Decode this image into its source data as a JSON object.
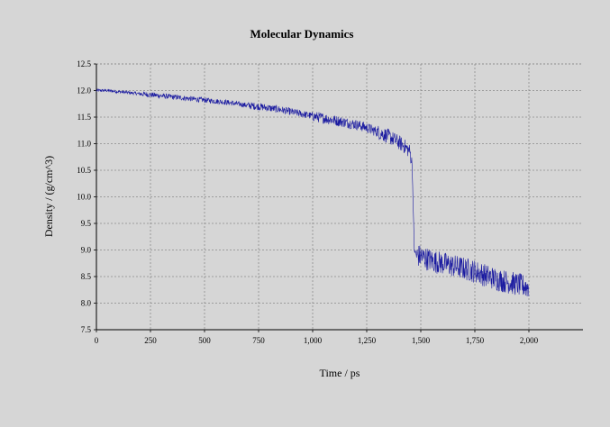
{
  "chart_data": {
    "type": "line",
    "title": "Molecular Dynamics",
    "xlabel": "Time / ps",
    "ylabel": "Density / (g/cm^3)",
    "xlim": [
      0,
      2250
    ],
    "ylim": [
      7.5,
      12.5
    ],
    "x_ticks": [
      0,
      250,
      500,
      750,
      1000,
      1250,
      1500,
      1750,
      2000
    ],
    "x_tick_labels": [
      "0",
      "250",
      "500",
      "750",
      "1,000",
      "1,250",
      "1,500",
      "1,750",
      "2,000"
    ],
    "y_ticks": [
      7.5,
      8.0,
      8.5,
      9.0,
      9.5,
      10.0,
      10.5,
      11.0,
      11.5,
      12.0,
      12.5
    ],
    "y_tick_labels": [
      "7.5",
      "8.0",
      "8.5",
      "9.0",
      "9.5",
      "10.0",
      "10.5",
      "11.0",
      "11.5",
      "12.0",
      "12.5"
    ],
    "grid": true,
    "line_color": "#1a1aa0",
    "background_color": "#d6d6d6",
    "series": [
      {
        "x": [
          0,
          50,
          100,
          150,
          200,
          250,
          300,
          350,
          400,
          450,
          500,
          550,
          600,
          650,
          700,
          750,
          800,
          850,
          900,
          950,
          1000,
          1050,
          1100,
          1150,
          1200,
          1250,
          1300,
          1350,
          1400,
          1425,
          1450,
          1460,
          1465,
          1470,
          1480,
          1500,
          1550,
          1600,
          1650,
          1700,
          1750,
          1800,
          1850,
          1900,
          1950,
          2000
        ],
        "y": [
          12.0,
          12.0,
          11.98,
          11.96,
          11.94,
          11.92,
          11.9,
          11.88,
          11.86,
          11.84,
          11.82,
          11.8,
          11.78,
          11.75,
          11.72,
          11.7,
          11.67,
          11.64,
          11.6,
          11.56,
          11.52,
          11.48,
          11.44,
          11.4,
          11.36,
          11.3,
          11.22,
          11.14,
          11.02,
          10.95,
          10.85,
          10.6,
          9.8,
          9.0,
          8.9,
          8.88,
          8.8,
          8.75,
          8.7,
          8.65,
          8.6,
          8.52,
          8.45,
          8.4,
          8.35,
          8.3
        ]
      }
    ]
  }
}
